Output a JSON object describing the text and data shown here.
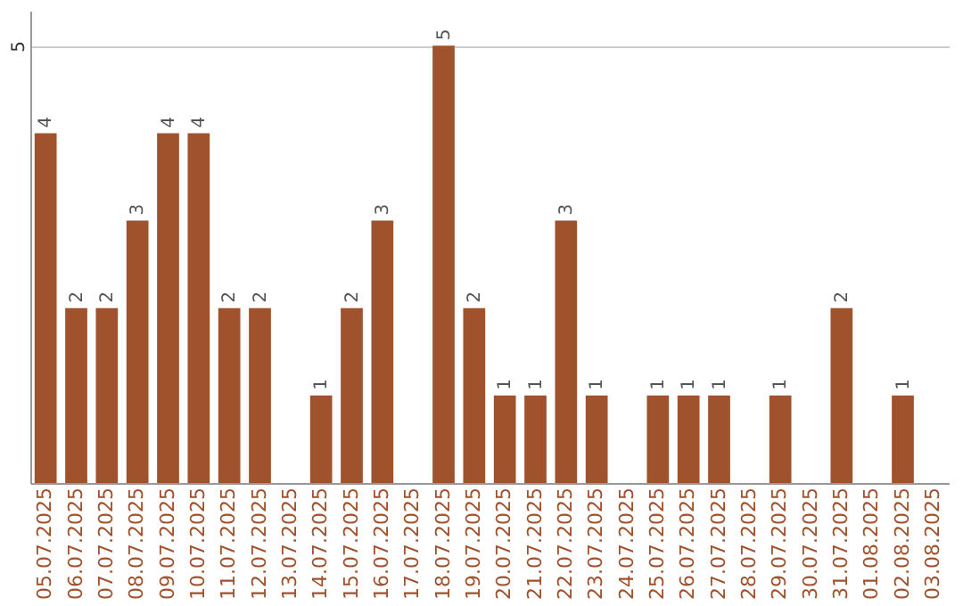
{
  "chart_data": {
    "type": "bar",
    "categories": [
      "05.07.2025",
      "06.07.2025",
      "07.07.2025",
      "08.07.2025",
      "09.07.2025",
      "10.07.2025",
      "11.07.2025",
      "12.07.2025",
      "13.07.2025",
      "14.07.2025",
      "15.07.2025",
      "16.07.2025",
      "17.07.2025",
      "18.07.2025",
      "19.07.2025",
      "20.07.2025",
      "21.07.2025",
      "22.07.2025",
      "23.07.2025",
      "24.07.2025",
      "25.07.2025",
      "26.07.2025",
      "27.07.2025",
      "28.07.2025",
      "29.07.2025",
      "30.07.2025",
      "31.07.2025",
      "01.08.2025",
      "02.08.2025",
      "03.08.2025"
    ],
    "values": [
      4,
      2,
      2,
      3,
      4,
      4,
      2,
      2,
      null,
      1,
      2,
      3,
      null,
      5,
      2,
      1,
      1,
      3,
      1,
      null,
      1,
      1,
      1,
      null,
      1,
      null,
      2,
      null,
      1,
      null
    ],
    "color": "#a0522d",
    "ylim": [
      0,
      5.4
    ],
    "yticks": [
      5
    ],
    "grid": "y",
    "data_labels": true
  }
}
